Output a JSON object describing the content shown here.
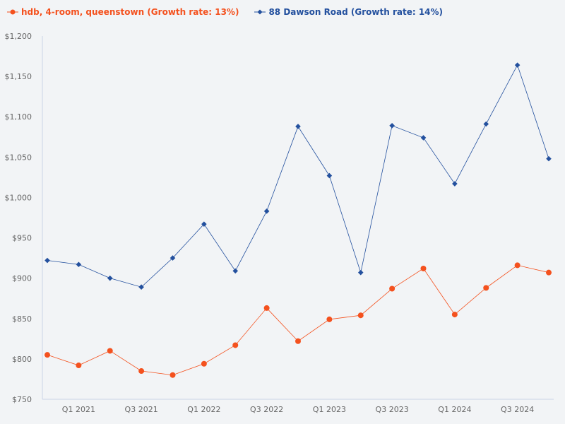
{
  "chart_data": {
    "type": "line",
    "title": "",
    "xlabel": "",
    "ylabel": "",
    "ylim": [
      750,
      1200
    ],
    "yticks": [
      "$750",
      "$800",
      "$850",
      "$900",
      "$950",
      "$1,000",
      "$1,050",
      "$1,100",
      "$1,150",
      "$1,200"
    ],
    "ytick_values": [
      750,
      800,
      850,
      900,
      950,
      1000,
      1050,
      1100,
      1150,
      1200
    ],
    "x": [
      "Q4 2020",
      "Q1 2021",
      "Q2 2021",
      "Q3 2021",
      "Q4 2021",
      "Q1 2022",
      "Q2 2022",
      "Q3 2022",
      "Q4 2022",
      "Q1 2023",
      "Q2 2023",
      "Q3 2023",
      "Q4 2023",
      "Q1 2024",
      "Q2 2024",
      "Q3 2024",
      "Q4 2024"
    ],
    "xtick_labels": [
      "Q1 2021",
      "Q3 2021",
      "Q1 2022",
      "Q3 2022",
      "Q1 2023",
      "Q3 2023",
      "Q1 2024",
      "Q3 2024"
    ],
    "grid": false,
    "legend_position": "top-left",
    "series": [
      {
        "name": "hdb, 4-room, queenstown (Growth rate: 13%)",
        "color": "#f4511e",
        "marker": "circle",
        "values": [
          805,
          792,
          810,
          785,
          780,
          794,
          817,
          863,
          822,
          849,
          854,
          887,
          912,
          855,
          888,
          916,
          907
        ]
      },
      {
        "name": "88 Dawson Road (Growth rate: 14%)",
        "color": "#23509e",
        "marker": "diamond",
        "values": [
          922,
          917,
          900,
          889,
          925,
          967,
          909,
          983,
          1088,
          1027,
          907,
          1089,
          1074,
          1017,
          1091,
          1164,
          1048
        ]
      }
    ]
  }
}
